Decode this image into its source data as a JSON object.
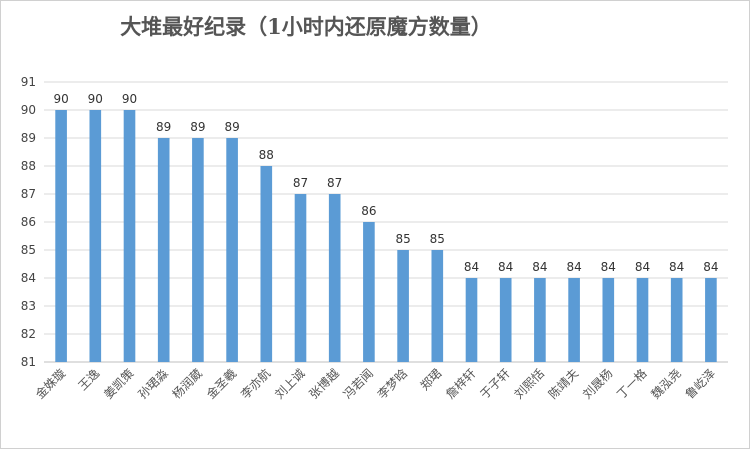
{
  "chart_data": {
    "type": "bar",
    "title": "大堆最好纪录（1小时内还原魔方数量）",
    "xlabel": "",
    "ylabel": "",
    "ylim": [
      81,
      91
    ],
    "yticks": [
      81,
      82,
      83,
      84,
      85,
      86,
      87,
      88,
      89,
      90,
      91
    ],
    "grid": true,
    "legend": "none",
    "bar_color": "#5b9bd5",
    "categories": [
      "金姝璇",
      "王逸",
      "姜凯策",
      "孙珺淼",
      "杨润葳",
      "金圣羲",
      "李亦航",
      "刘上诚",
      "张博越",
      "冯若闻",
      "李梦晗",
      "郑珺",
      "詹梓轩",
      "于子轩",
      "刘熙恬",
      "陈靖夫",
      "刘晟杨",
      "丁一格",
      "魏泓尧",
      "鲁屹泽"
    ],
    "values": [
      90,
      90,
      90,
      89,
      89,
      89,
      88,
      87,
      87,
      86,
      85,
      85,
      84,
      84,
      84,
      84,
      84,
      84,
      84,
      84
    ]
  }
}
